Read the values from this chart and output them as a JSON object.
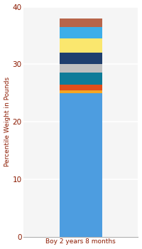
{
  "category": "Boy 2 years 8 months",
  "segments": [
    {
      "value": 25.0,
      "color": "#4D9DE0"
    },
    {
      "value": 0.5,
      "color": "#F5A623"
    },
    {
      "value": 1.0,
      "color": "#E04E1A"
    },
    {
      "value": 2.0,
      "color": "#0E7C99"
    },
    {
      "value": 1.5,
      "color": "#C0C0C0"
    },
    {
      "value": 2.0,
      "color": "#1F3F6E"
    },
    {
      "value": 2.5,
      "color": "#FAE76E"
    },
    {
      "value": 2.0,
      "color": "#3DAEE9"
    },
    {
      "value": 1.5,
      "color": "#B8654A"
    }
  ],
  "ylabel": "Percentile Weight in Pounds",
  "ylim": [
    0,
    40
  ],
  "yticks": [
    0,
    10,
    20,
    30,
    40
  ],
  "bg_color": "#FFFFFF",
  "plot_bg_color": "#F5F5F5",
  "bar_width": 0.45,
  "xlabel_color": "#8B1A00",
  "ylabel_color": "#8B1A00",
  "tick_color": "#8B1A00",
  "grid_color": "#FFFFFF"
}
